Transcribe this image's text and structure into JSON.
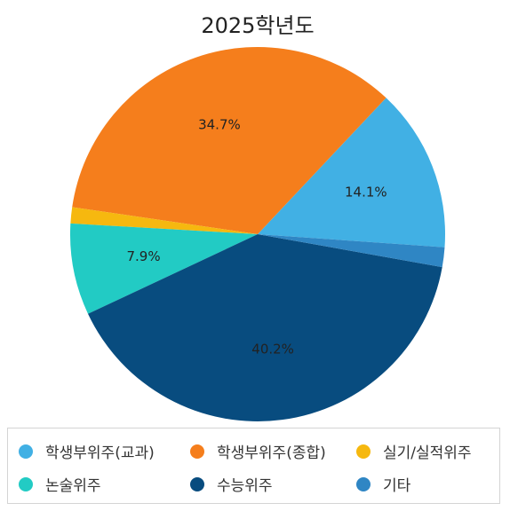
{
  "chart_data": {
    "type": "pie",
    "title": "2025학년도",
    "categories": [
      "학생부위주(교과)",
      "학생부위주(종합)",
      "실기/실적위주",
      "논술위주",
      "수능위주",
      "기타"
    ],
    "values": [
      14.1,
      34.7,
      1.4,
      7.9,
      40.2,
      1.7
    ],
    "value_labels": [
      "14.1%",
      "34.7%",
      "",
      "7.9%",
      "40.2%",
      ""
    ],
    "colors": [
      "#41b0e4",
      "#f57e1c",
      "#f6b80f",
      "#22cbc4",
      "#084c7f",
      "#2f86c4"
    ],
    "legend_position": "bottom"
  }
}
